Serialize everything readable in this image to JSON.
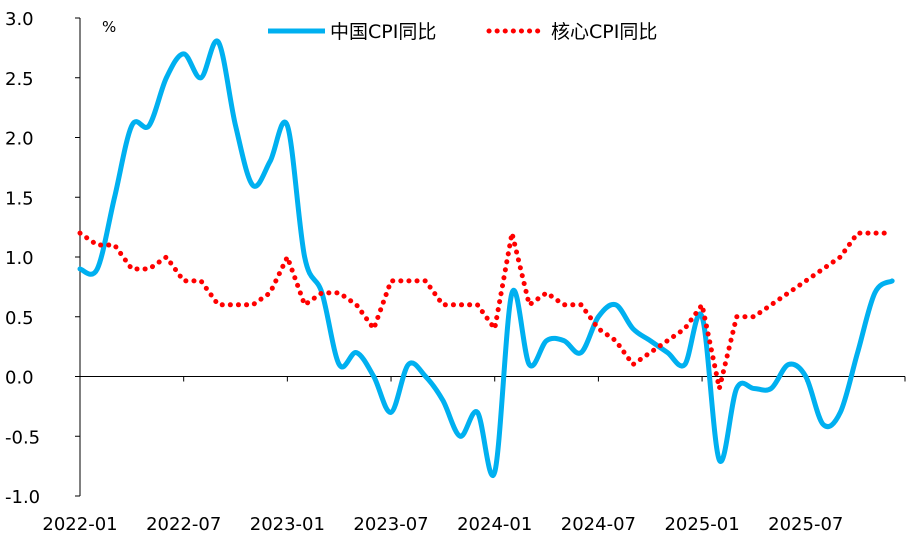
{
  "chart_data": {
    "type": "line",
    "title": "",
    "ylabel": "%",
    "xlabel": "",
    "ylim": [
      -1.0,
      3.0
    ],
    "yticks": [
      "3.0",
      "2.5",
      "2.0",
      "1.5",
      "1.0",
      "0.5",
      "0.0",
      "-0.5",
      "-1.0"
    ],
    "ytick_values": [
      3.0,
      2.5,
      2.0,
      1.5,
      1.0,
      0.5,
      0.0,
      -0.5,
      -1.0
    ],
    "xtick_labels": [
      "2022-01",
      "2022-07",
      "2023-01",
      "2023-07",
      "2024-01",
      "2024-07",
      "2025-01",
      "2025-07"
    ],
    "xtick_month_index": [
      0,
      6,
      12,
      18,
      24,
      30,
      36,
      42
    ],
    "x_start": "2022-01",
    "x_end": "2025-12",
    "legend_position": "top-center",
    "grid": false,
    "series": [
      {
        "name": "中国CPI同比",
        "color": "#00B0F0",
        "style": "solid",
        "values": [
          0.9,
          0.9,
          1.5,
          2.1,
          2.1,
          2.5,
          2.7,
          2.5,
          2.8,
          2.1,
          1.6,
          1.8,
          2.1,
          1.0,
          0.7,
          0.1,
          0.2,
          0.0,
          -0.3,
          0.1,
          0.0,
          -0.2,
          -0.5,
          -0.3,
          -0.8,
          0.7,
          0.1,
          0.3,
          0.3,
          0.2,
          0.5,
          0.6,
          0.4,
          0.3,
          0.2,
          0.1,
          0.5,
          -0.7,
          -0.1,
          -0.1,
          -0.1,
          0.1,
          0.0,
          -0.4,
          -0.3,
          0.2,
          0.7,
          0.8
        ]
      },
      {
        "name": "核心CPI同比",
        "color": "#FF0000",
        "style": "dotted",
        "values": [
          1.2,
          1.1,
          1.1,
          0.9,
          0.9,
          1.0,
          0.8,
          0.8,
          0.6,
          0.6,
          0.6,
          0.7,
          1.0,
          0.6,
          0.7,
          0.7,
          0.6,
          0.4,
          0.8,
          0.8,
          0.8,
          0.6,
          0.6,
          0.6,
          0.4,
          1.2,
          0.6,
          0.7,
          0.6,
          0.6,
          0.4,
          0.3,
          0.1,
          0.2,
          0.3,
          0.4,
          0.6,
          -0.1,
          0.5,
          0.5,
          0.6,
          0.7,
          0.8,
          0.9,
          1.0,
          1.2,
          1.2,
          1.2
        ]
      }
    ]
  }
}
